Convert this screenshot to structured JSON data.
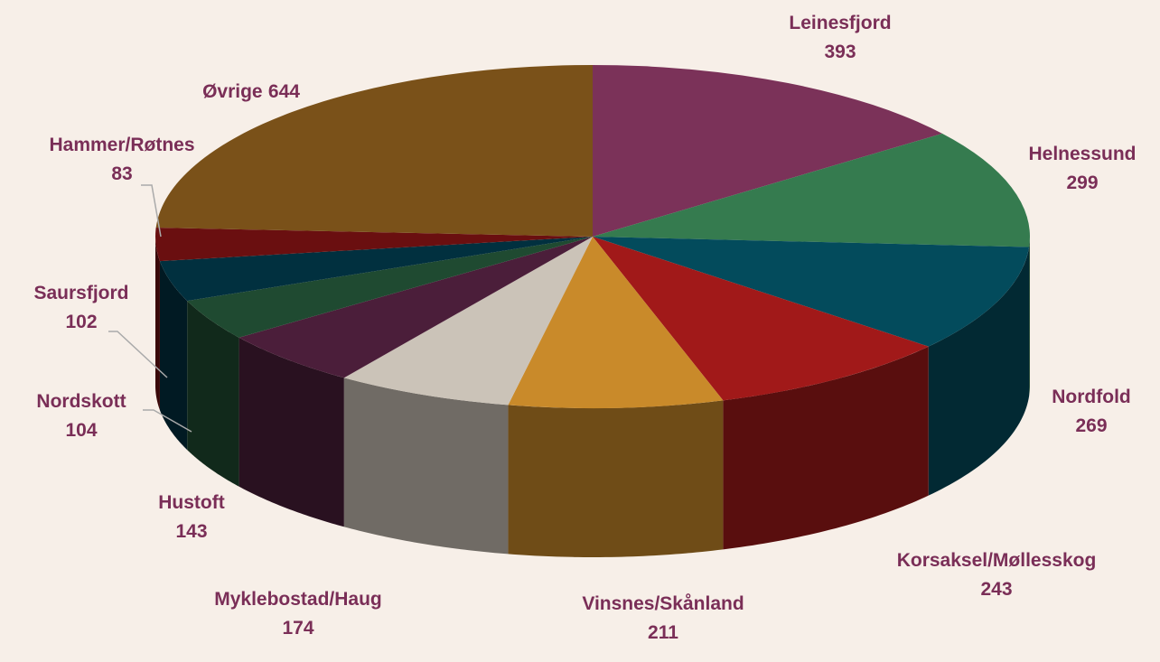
{
  "chart_data": {
    "type": "pie3d",
    "categories": [
      "Leinesfjord",
      "Helnessund",
      "Nordfold",
      "Korsaksel/Møllesskog",
      "Vinsnes/Skånland",
      "Myklebostad/Haug",
      "Hustoft",
      "Nordskott",
      "Saursfjord",
      "Hammer/Røtnes",
      "Øvrige"
    ],
    "values": [
      393,
      299,
      269,
      243,
      211,
      174,
      143,
      104,
      102,
      83,
      644
    ],
    "colors": [
      "#7b3259",
      "#357b4f",
      "#034b5c",
      "#a11919",
      "#c98a2a",
      "#cbc3b8",
      "#4b1e3a",
      "#1f4a31",
      "#01303f",
      "#6a0f10",
      "#7a5119"
    ]
  }
}
